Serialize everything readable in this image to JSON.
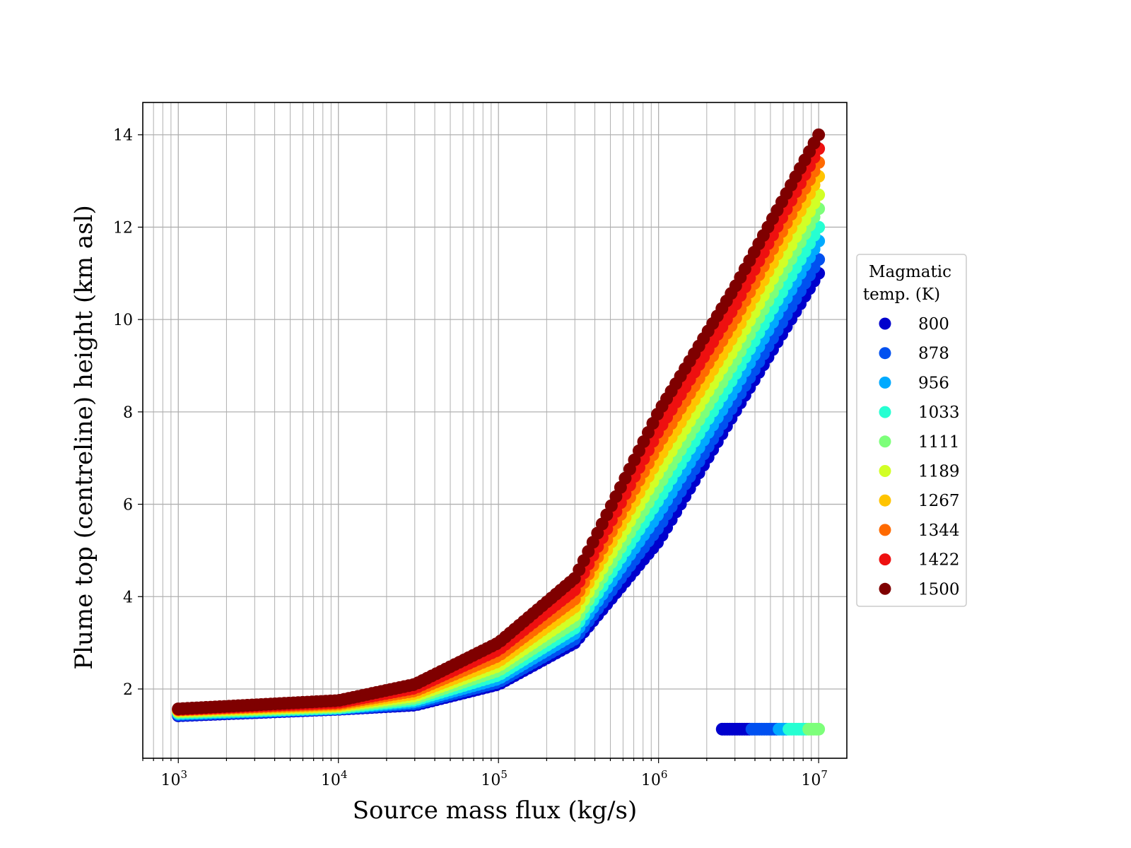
{
  "chart_data": {
    "type": "scatter",
    "xlabel": "Source mass flux (kg/s)",
    "ylabel": "Plume top (centreline) height (km asl)",
    "xscale": "log",
    "xlim": [
      600,
      15000000
    ],
    "ylim": [
      0.5,
      14.7
    ],
    "x_ticks": [
      {
        "base": "10",
        "exp": "3",
        "value": 1000
      },
      {
        "base": "10",
        "exp": "4",
        "value": 10000
      },
      {
        "base": "10",
        "exp": "5",
        "value": 100000
      },
      {
        "base": "10",
        "exp": "6",
        "value": 1000000
      },
      {
        "base": "10",
        "exp": "7",
        "value": 10000000
      }
    ],
    "y_ticks": [
      2,
      4,
      6,
      8,
      10,
      12,
      14
    ],
    "y_tick_labels": [
      "2",
      "4",
      "6",
      "8",
      "10",
      "12",
      "14"
    ],
    "grid": true,
    "legend": {
      "title_line1": "Magmatic",
      "title_line2": "temp. (K)",
      "placement": "right-outside"
    },
    "series": [
      {
        "name": "800",
        "color": "#0000cd",
        "x": [
          1000,
          10000,
          30000,
          100000,
          300000,
          1000000,
          3000000,
          10000000
        ],
        "y": [
          1.42,
          1.56,
          1.65,
          2.1,
          3.0,
          5.2,
          8.0,
          11.0
        ]
      },
      {
        "name": "878",
        "color": "#0050f0",
        "x": [
          1000,
          10000,
          30000,
          100000,
          300000,
          1000000,
          3000000,
          10000000
        ],
        "y": [
          1.44,
          1.57,
          1.68,
          2.15,
          3.08,
          5.5,
          8.2,
          11.3
        ]
      },
      {
        "name": "956",
        "color": "#00aaff",
        "x": [
          1000,
          10000,
          30000,
          100000,
          300000,
          1000000,
          3000000,
          10000000
        ],
        "y": [
          1.46,
          1.58,
          1.72,
          2.22,
          3.2,
          5.8,
          8.5,
          11.7
        ]
      },
      {
        "name": "1033",
        "color": "#26ffd2",
        "x": [
          1000,
          10000,
          30000,
          100000,
          300000,
          1000000,
          3000000,
          10000000
        ],
        "y": [
          1.48,
          1.59,
          1.76,
          2.3,
          3.32,
          6.1,
          8.8,
          12.0
        ]
      },
      {
        "name": "1111",
        "color": "#7dff7a",
        "x": [
          1000,
          10000,
          30000,
          100000,
          300000,
          1000000,
          3000000,
          10000000
        ],
        "y": [
          1.5,
          1.61,
          1.8,
          2.4,
          3.45,
          6.4,
          9.1,
          12.4
        ]
      },
      {
        "name": "1189",
        "color": "#d2ff26",
        "x": [
          1000,
          10000,
          30000,
          100000,
          300000,
          1000000,
          3000000,
          10000000
        ],
        "y": [
          1.52,
          1.63,
          1.85,
          2.5,
          3.6,
          6.7,
          9.4,
          12.7
        ]
      },
      {
        "name": "1267",
        "color": "#ffc400",
        "x": [
          1000,
          10000,
          30000,
          100000,
          300000,
          1000000,
          3000000,
          10000000
        ],
        "y": [
          1.54,
          1.65,
          1.9,
          2.6,
          3.78,
          7.0,
          9.7,
          13.1
        ]
      },
      {
        "name": "1344",
        "color": "#ff6a00",
        "x": [
          1000,
          10000,
          30000,
          100000,
          300000,
          1000000,
          3000000,
          10000000
        ],
        "y": [
          1.55,
          1.68,
          1.96,
          2.72,
          3.95,
          7.3,
          10.0,
          13.4
        ]
      },
      {
        "name": "1422",
        "color": "#ee1010",
        "x": [
          1000,
          10000,
          30000,
          100000,
          300000,
          1000000,
          3000000,
          10000000
        ],
        "y": [
          1.56,
          1.71,
          2.02,
          2.85,
          4.15,
          7.6,
          10.3,
          13.7
        ]
      },
      {
        "name": "1500",
        "color": "#7f0000",
        "x": [
          1000,
          10000,
          30000,
          100000,
          300000,
          1000000,
          3000000,
          10000000
        ],
        "y": [
          1.57,
          1.75,
          2.1,
          3.0,
          4.4,
          8.0,
          10.7,
          14.0
        ]
      }
    ],
    "collapsed_points": {
      "x": [
        2500000,
        3000000,
        3500000,
        4000000,
        5000000,
        6000000,
        7000000,
        8000000,
        9000000,
        10000000
      ],
      "y": [
        1.13,
        1.13,
        1.13,
        1.13,
        1.13,
        1.13,
        1.13,
        1.13,
        1.13,
        1.13
      ],
      "series_index": [
        0,
        0,
        0,
        1,
        1,
        2,
        3,
        3,
        4,
        4
      ]
    }
  }
}
